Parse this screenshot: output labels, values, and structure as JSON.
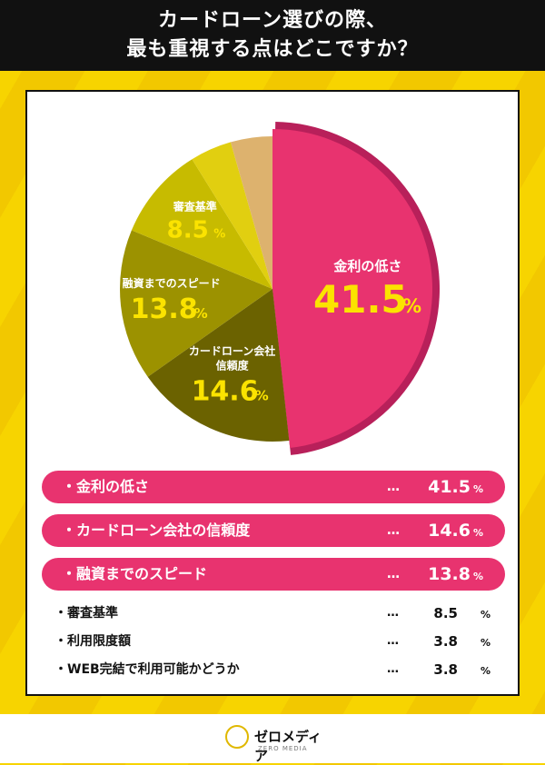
{
  "header": {
    "line1": "カードローン選びの際、",
    "line2": "最も重視する点はどこですか？"
  },
  "chart_data": {
    "type": "pie",
    "slices": [
      {
        "label": "金利の低さ",
        "value": 41.5,
        "color": "#e8336f",
        "text_color": "#ffffff",
        "value_color": "#fbe300"
      },
      {
        "label": "カードローン会社信頼度",
        "value": 14.6,
        "color": "#6b6200",
        "text_color": "#ffffff",
        "value_color": "#fbe300"
      },
      {
        "label": "融資までのスピード",
        "value": 13.8,
        "color": "#9c9200",
        "text_color": "#ffffff",
        "value_color": "#fbe300"
      },
      {
        "label": "審査基準",
        "value": 8.5,
        "color": "#c7bb00",
        "text_color": "#ffffff",
        "value_color": "#fbe300"
      },
      {
        "label": "利用限度額",
        "value": 3.8,
        "color": "#e1cf10",
        "text_color": "",
        "value_color": ""
      },
      {
        "label": "WEB完結で利用可能かどうか",
        "value": 3.8,
        "color": "#ddb26e",
        "text_color": "",
        "value_color": ""
      }
    ],
    "slice_labels": [
      {
        "line1": "金利の低さ",
        "line2": "",
        "value": "41.5"
      },
      {
        "line1": "カードローン会社",
        "line2": "信頼度",
        "value": "14.6"
      },
      {
        "line1": "融資までのスピード",
        "line2": "",
        "value": "13.8"
      },
      {
        "line1": "審査基準",
        "line2": "",
        "value": "8.5"
      }
    ],
    "percent_sign": "%",
    "rim_color": "#b8205a"
  },
  "ranking": {
    "highlight": [
      {
        "label": "・金利の低さ",
        "dots": "…",
        "value": "41.5",
        "unit": "%"
      },
      {
        "label": "・カードローン会社の信頼度",
        "dots": "…",
        "value": "14.6",
        "unit": "%"
      },
      {
        "label": "・融資までのスピード",
        "dots": "…",
        "value": "13.8",
        "unit": "%"
      }
    ],
    "plain": [
      {
        "label": "・審査基準",
        "dots": "…",
        "value": "8.5",
        "unit": "%"
      },
      {
        "label": "・利用限度額",
        "dots": "…",
        "value": "3.8",
        "unit": "%"
      },
      {
        "label": "・WEB完結で利用可能かどうか",
        "dots": "…",
        "value": "3.8",
        "unit": "%"
      }
    ]
  },
  "footer": {
    "logo_text": "ゼロメディア",
    "logo_sub": "ZERO MEDIA",
    "logo_icon": "pen-circle-icon"
  }
}
